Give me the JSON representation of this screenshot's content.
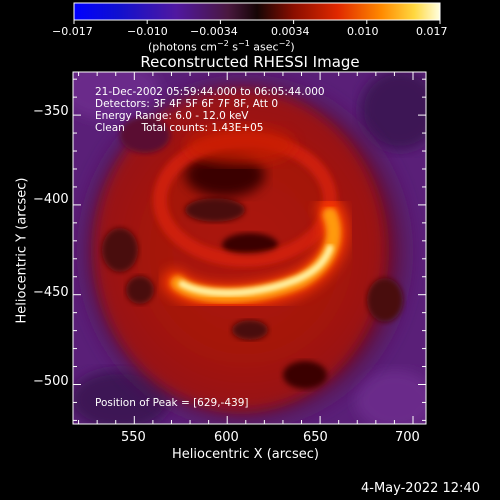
{
  "colorbar": {
    "ticks": [
      "−0.017",
      "−0.010",
      "−0.0034",
      "0.0034",
      "0.010",
      "0.017"
    ],
    "unit_label": "(photons cm",
    "unit_sup1": "−2",
    "unit_mid": " s",
    "unit_sup2": "−1",
    "unit_mid2": " asec",
    "unit_sup3": "−2",
    "unit_end": ")"
  },
  "plot": {
    "title": "Reconstructed RHESSI Image",
    "xlabel": "Heliocentric X (arcsec)",
    "ylabel": "Heliocentric Y (arcsec)",
    "x_ticks": [
      "550",
      "600",
      "650",
      "700"
    ],
    "y_ticks": [
      "−350",
      "−400",
      "−450",
      "−500"
    ],
    "xlim": [
      517,
      707
    ],
    "ylim": [
      -522,
      -326
    ],
    "info_lines": [
      "21-Dec-2002 05:59:44.000 to 06:05:44.000",
      "Detectors: 3F 4F 5F 6F 7F 8F, Att 0",
      "Energy Range: 6.0 - 12.0 keV",
      "Clean     Total counts: 1.43E+05"
    ],
    "peak_label": "Position of Peak = [629,-439]",
    "peak_position": [
      629,
      -439
    ]
  },
  "footer": {
    "date": "4-May-2022 12:40"
  },
  "colors": {
    "background": "#000000",
    "frame": "#ffffff",
    "outer_purple": "#5a1f7a",
    "inner_purple": "#3a1650",
    "disk_red": "#a01408",
    "arc_core": "#fff8c0"
  }
}
